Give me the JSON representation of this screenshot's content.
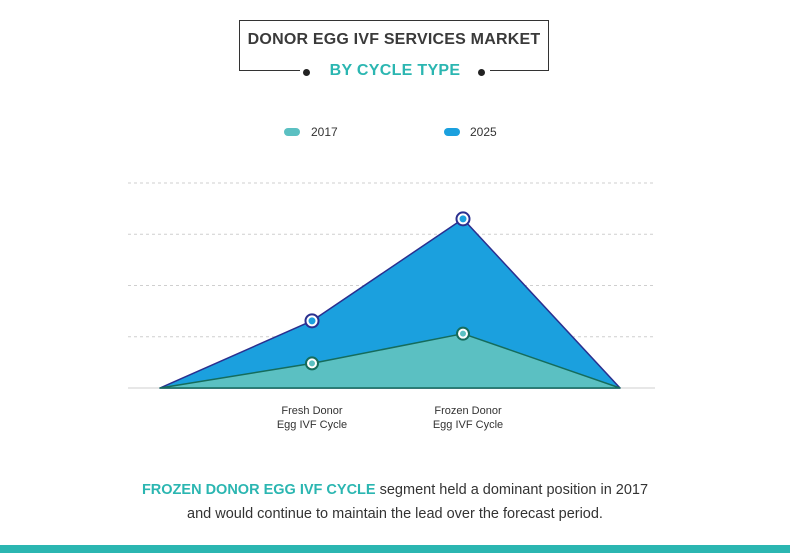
{
  "header": {
    "title": "DONOR EGG IVF SERVICES MARKET",
    "subtitle": "BY CYCLE TYPE"
  },
  "colors": {
    "series_2017": "#5bc0c2",
    "series_2025": "#1ba0de",
    "marker_2017_edge": "#156c5c",
    "marker_2025_edge": "#2a2f8f",
    "accent": "#2bb6b1"
  },
  "caption": {
    "highlight": "FROZEN DONOR EGG IVF CYCLE",
    "line1_rest": " segment held a dominant position in 2017",
    "line2": "and would continue to maintain the lead over the forecast period."
  },
  "chart_data": {
    "type": "area",
    "title": "DONOR EGG IVF SERVICES MARKET",
    "subtitle": "BY CYCLE TYPE",
    "categories": [
      "",
      "Fresh Donor\nEgg IVF Cycle",
      "Frozen Donor\nEgg IVF Cycle",
      ""
    ],
    "category_labels": [
      {
        "line1": "Fresh Donor",
        "line2": "Egg IVF Cycle"
      },
      {
        "line1": "Frozen Donor",
        "line2": "Egg IVF Cycle"
      }
    ],
    "series": [
      {
        "name": "2017",
        "values": [
          0,
          0.48,
          1.06,
          0
        ]
      },
      {
        "name": "2025",
        "values": [
          0,
          1.31,
          3.3,
          0
        ]
      }
    ],
    "ylim": [
      0,
      4
    ],
    "grid": true,
    "legend": "top-center",
    "xlabel": "",
    "ylabel": ""
  }
}
